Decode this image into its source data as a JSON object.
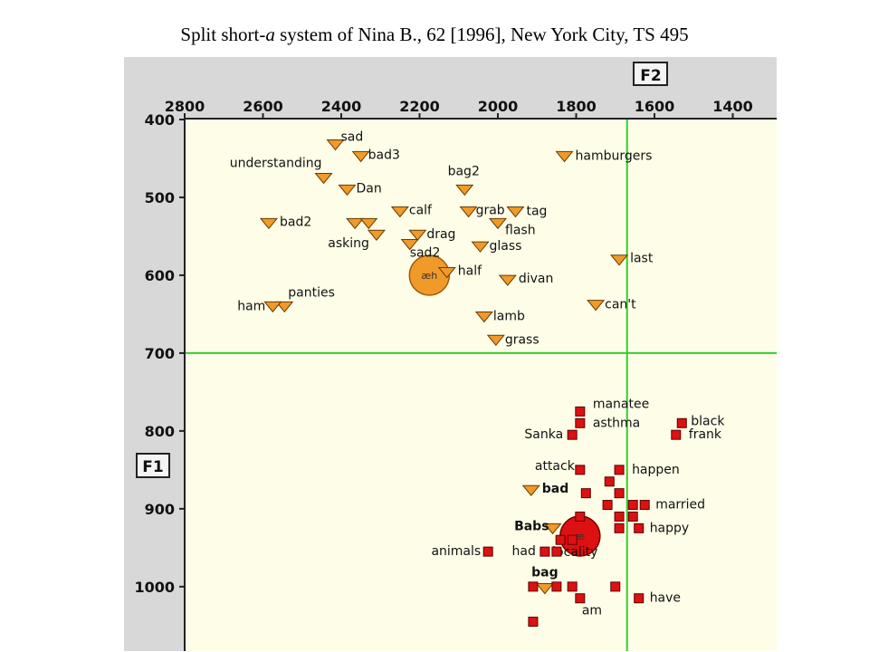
{
  "title": {
    "before": "Split short-",
    "italic": "a",
    "after": " system of Nina B., 62 [1996], New York City, TS 495"
  },
  "colors": {
    "panel": "#d8d8d8",
    "plot_bg": "#fefee8",
    "grid_line": "#33cc33",
    "tense_marker": "#f09a2a",
    "lax_marker": "#dd1111",
    "axis_text": "#111111"
  },
  "chart_data": {
    "type": "scatter",
    "x_axis_label": "F2",
    "y_axis_label": "F1",
    "x_ticks": [
      2800,
      2600,
      2400,
      2200,
      2000,
      1800,
      1600,
      1400
    ],
    "y_ticks": [
      400,
      500,
      600,
      700,
      800,
      900,
      1000
    ],
    "xlim": [
      2800,
      1300
    ],
    "ylim": [
      400,
      1080
    ],
    "x_reversed": true,
    "grid_lines": {
      "x": 1670,
      "y": 700
    },
    "means": [
      {
        "label": "æh",
        "f2": 2175,
        "f1": 600,
        "series": "tense"
      },
      {
        "label": "æ",
        "f2": 1790,
        "f1": 935,
        "series": "lax"
      }
    ],
    "series": [
      {
        "name": "tense",
        "marker": "triangle",
        "points": [
          {
            "label": "sad",
            "f2": 2415,
            "f1": 432
          },
          {
            "label": "bad3",
            "f2": 2350,
            "f1": 447
          },
          {
            "label": "understanding",
            "f2": 2445,
            "f1": 475
          },
          {
            "label": "Dan",
            "f2": 2385,
            "f1": 490
          },
          {
            "label": "bag2",
            "f2": 2085,
            "f1": 490
          },
          {
            "label": "hamburgers",
            "f2": 1830,
            "f1": 447
          },
          {
            "label": "grab",
            "f2": 2075,
            "f1": 518
          },
          {
            "label": "calf",
            "f2": 2250,
            "f1": 518
          },
          {
            "label": "tag",
            "f2": 1955,
            "f1": 518
          },
          {
            "label": "bad2",
            "f2": 2585,
            "f1": 533
          },
          {
            "label": "",
            "f2": 2365,
            "f1": 533
          },
          {
            "label": "",
            "f2": 2330,
            "f1": 533
          },
          {
            "label": "flash",
            "f2": 2000,
            "f1": 533
          },
          {
            "label": "asking",
            "f2": 2310,
            "f1": 548
          },
          {
            "label": "drag",
            "f2": 2205,
            "f1": 548
          },
          {
            "label": "sad2",
            "f2": 2225,
            "f1": 560
          },
          {
            "label": "glass",
            "f2": 2045,
            "f1": 563
          },
          {
            "label": "last",
            "f2": 1690,
            "f1": 580
          },
          {
            "label": "half",
            "f2": 2130,
            "f1": 596
          },
          {
            "label": "divan",
            "f2": 1975,
            "f1": 606
          },
          {
            "label": "panties",
            "f2": 2545,
            "f1": 640
          },
          {
            "label": "ham",
            "f2": 2575,
            "f1": 640
          },
          {
            "label": "can't",
            "f2": 1750,
            "f1": 638
          },
          {
            "label": "lamb",
            "f2": 2035,
            "f1": 653
          },
          {
            "label": "grass",
            "f2": 2005,
            "f1": 683
          },
          {
            "label": "bad",
            "f2": 1915,
            "f1": 876
          },
          {
            "label": "Babs",
            "f2": 1860,
            "f1": 925
          },
          {
            "label": "bag",
            "f2": 1880,
            "f1": 1002
          }
        ]
      },
      {
        "name": "lax",
        "marker": "square",
        "points": [
          {
            "label": "manatee",
            "f2": 1790,
            "f1": 775
          },
          {
            "label": "asthma",
            "f2": 1790,
            "f1": 790
          },
          {
            "label": "Sanka",
            "f2": 1810,
            "f1": 805
          },
          {
            "label": "black",
            "f2": 1530,
            "f1": 790
          },
          {
            "label": "frank",
            "f2": 1545,
            "f1": 805
          },
          {
            "label": "attack",
            "f2": 1790,
            "f1": 850
          },
          {
            "label": "happen",
            "f2": 1690,
            "f1": 850
          },
          {
            "label": "",
            "f2": 1715,
            "f1": 865
          },
          {
            "label": "",
            "f2": 1775,
            "f1": 880
          },
          {
            "label": "",
            "f2": 1690,
            "f1": 880
          },
          {
            "label": "married",
            "f2": 1625,
            "f1": 895
          },
          {
            "label": "",
            "f2": 1720,
            "f1": 895
          },
          {
            "label": "",
            "f2": 1655,
            "f1": 895
          },
          {
            "label": "",
            "f2": 1690,
            "f1": 910
          },
          {
            "label": "",
            "f2": 1655,
            "f1": 910
          },
          {
            "label": "",
            "f2": 1790,
            "f1": 910
          },
          {
            "label": "happy",
            "f2": 1640,
            "f1": 925
          },
          {
            "label": "",
            "f2": 1690,
            "f1": 925
          },
          {
            "label": "",
            "f2": 1840,
            "f1": 940
          },
          {
            "label": "locality",
            "f2": 1810,
            "f1": 940
          },
          {
            "label": "had",
            "f2": 1880,
            "f1": 955
          },
          {
            "label": "",
            "f2": 1850,
            "f1": 955
          },
          {
            "label": "animals",
            "f2": 2025,
            "f1": 955
          },
          {
            "label": "",
            "f2": 1910,
            "f1": 1000
          },
          {
            "label": "",
            "f2": 1850,
            "f1": 1000
          },
          {
            "label": "",
            "f2": 1810,
            "f1": 1000
          },
          {
            "label": "",
            "f2": 1700,
            "f1": 1000
          },
          {
            "label": "am",
            "f2": 1790,
            "f1": 1015
          },
          {
            "label": "have",
            "f2": 1640,
            "f1": 1015
          },
          {
            "label": "",
            "f2": 1910,
            "f1": 1045
          }
        ]
      }
    ]
  }
}
